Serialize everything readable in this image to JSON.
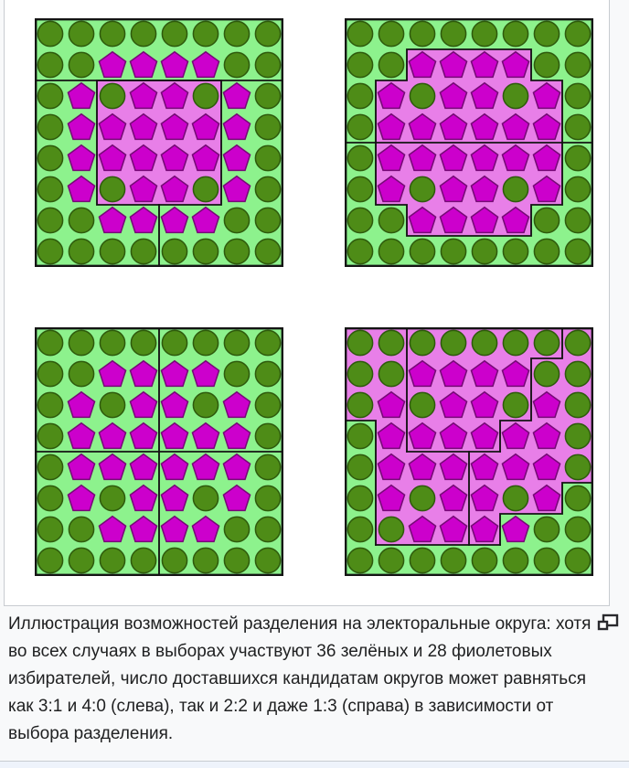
{
  "page": {
    "background": "#f8f9fa",
    "image_box_background": "#ffffff",
    "frame_border_color": "#c8ccd1",
    "footer_background": "#eef3fb"
  },
  "caption": {
    "text": "Иллюстрация возможностей разделения на электоральные округа: хотя во всех случаях в выборах участвуют 36 зелёных и 28 фиолетовых избирателей, число доставшихся кандидатам округов может равняться как 3:1 и 4:0 (слева), так и 2:2 и даже 1:3 (справа) в зависимости от выбора разделения."
  },
  "figure": {
    "colors": {
      "district_green": "#8df28d",
      "district_magenta": "#e87fe8",
      "voter_green_fill": "#4e8c17",
      "voter_green_stroke": "#2e5a0c",
      "voter_magenta_fill": "#cc00cc",
      "voter_magenta_stroke": "#760a76",
      "district_border": "#141414"
    },
    "voters": [
      "GGGGGGGG",
      "GGPPPPGG",
      "GPGPPGPG",
      "GPPPPPPG",
      "GPPPPPPG",
      "GPGPPGPG",
      "GGPPPPGG",
      "GGGGGGGG"
    ],
    "panels": [
      {
        "id": "top-left",
        "bg": [
          "gggggggg",
          "gggggggg",
          "ggmmmmgg",
          "ggmmmmgg",
          "ggmmmmgg",
          "ggmmmmgg",
          "gggggggg",
          "gggggggg"
        ],
        "borders": [
          [
            [
              0,
              2
            ],
            [
              8,
              2
            ]
          ],
          [
            [
              2,
              2
            ],
            [
              6,
              2
            ],
            [
              6,
              6
            ],
            [
              2,
              6
            ],
            [
              2,
              2
            ]
          ],
          [
            [
              4,
              6
            ],
            [
              4,
              8
            ]
          ]
        ]
      },
      {
        "id": "top-right",
        "bg": [
          "gggggggg",
          "ggmmmmgg",
          "gmmmmmmg",
          "gmmmmmmg",
          "gmmmmmmg",
          "gmmmmmmg",
          "ggmmmmgg",
          "gggggggg"
        ],
        "borders": [
          [
            [
              0,
              4
            ],
            [
              8,
              4
            ]
          ],
          [
            [
              1,
              4
            ],
            [
              1,
              2
            ],
            [
              2,
              2
            ],
            [
              2,
              1
            ],
            [
              6,
              1
            ],
            [
              6,
              2
            ],
            [
              7,
              2
            ],
            [
              7,
              4
            ]
          ],
          [
            [
              1,
              4
            ],
            [
              1,
              6
            ],
            [
              2,
              6
            ],
            [
              2,
              7
            ],
            [
              6,
              7
            ],
            [
              6,
              6
            ],
            [
              7,
              6
            ],
            [
              7,
              4
            ]
          ]
        ]
      },
      {
        "id": "bottom-left",
        "bg": [
          "gggggggg",
          "gggggggg",
          "gggggggg",
          "gggggggg",
          "gggggggg",
          "gggggggg",
          "gggggggg",
          "gggggggg"
        ],
        "borders": [
          [
            [
              4,
              0
            ],
            [
              4,
              8
            ]
          ],
          [
            [
              0,
              4
            ],
            [
              8,
              4
            ]
          ]
        ]
      },
      {
        "id": "bottom-right",
        "bg": [
          "mmmmmmmm",
          "mmmmmmmm",
          "mmmmmmmm",
          "gmmmmmmm",
          "gmmmmmmm",
          "gmmmmmmg",
          "gmmmmggg",
          "gggggggg"
        ],
        "borders": [
          [
            [
              2,
              0
            ],
            [
              2,
              4
            ]
          ],
          [
            [
              7,
              0
            ],
            [
              7,
              1
            ],
            [
              6,
              1
            ],
            [
              6,
              3
            ],
            [
              5,
              3
            ],
            [
              5,
              4
            ]
          ],
          [
            [
              2,
              4
            ],
            [
              5,
              4
            ]
          ],
          [
            [
              0,
              3
            ],
            [
              1,
              3
            ],
            [
              1,
              7
            ]
          ],
          [
            [
              1,
              7
            ],
            [
              5,
              7
            ]
          ],
          [
            [
              4,
              4
            ],
            [
              4,
              7
            ]
          ],
          [
            [
              8,
              5
            ],
            [
              7,
              5
            ],
            [
              7,
              6
            ],
            [
              5,
              6
            ],
            [
              5,
              7
            ]
          ]
        ]
      }
    ]
  }
}
